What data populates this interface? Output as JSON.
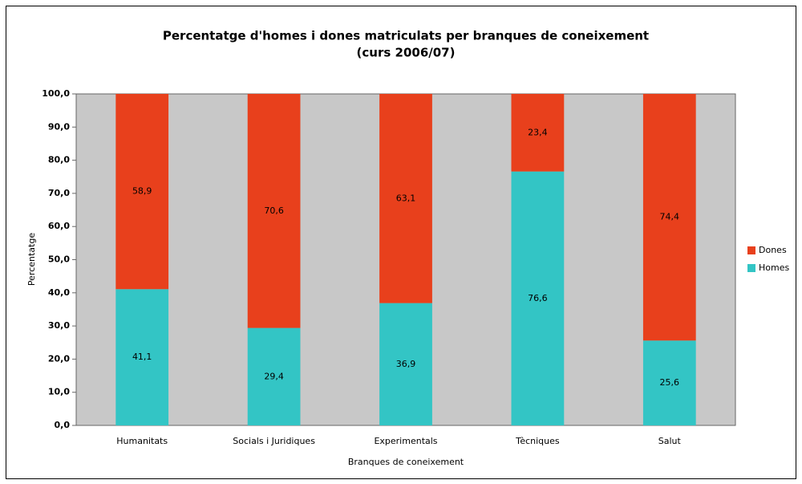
{
  "chart_data": {
    "type": "stacked_bar",
    "title": "Percentatge d'homes i dones matriculats per branques de coneixement",
    "subtitle": "(curs 2006/07)",
    "x_label": "Branques de coneixement",
    "y_label": "Percentatge",
    "categories": [
      "Humanitats",
      "Socials i Juridiques",
      "Experimentals",
      "Tècniques",
      "Salut"
    ],
    "series": [
      {
        "name": "Homes",
        "color": "#33c5c5",
        "values": [
          41.1,
          29.4,
          36.9,
          76.6,
          25.6
        ],
        "value_labels": [
          "41,1",
          "29,4",
          "36,9",
          "76,6",
          "25,6"
        ]
      },
      {
        "name": "Dones",
        "color": "#e8401c",
        "values": [
          58.9,
          70.6,
          63.1,
          23.4,
          74.4
        ],
        "value_labels": [
          "58,9",
          "70,6",
          "63,1",
          "23,4",
          "74,4"
        ]
      }
    ],
    "ylim": [
      0,
      100
    ],
    "yticks": [
      {
        "value": 0,
        "label": "0,0"
      },
      {
        "value": 10,
        "label": "10,0"
      },
      {
        "value": 20,
        "label": "20,0"
      },
      {
        "value": 30,
        "label": "30,0"
      },
      {
        "value": 40,
        "label": "40,0"
      },
      {
        "value": 50,
        "label": "50,0"
      },
      {
        "value": 60,
        "label": "60,0"
      },
      {
        "value": 70,
        "label": "70,0"
      },
      {
        "value": 80,
        "label": "80,0"
      },
      {
        "value": 90,
        "label": "90,0"
      },
      {
        "value": 100,
        "label": "100,0"
      }
    ],
    "legend": "right"
  }
}
